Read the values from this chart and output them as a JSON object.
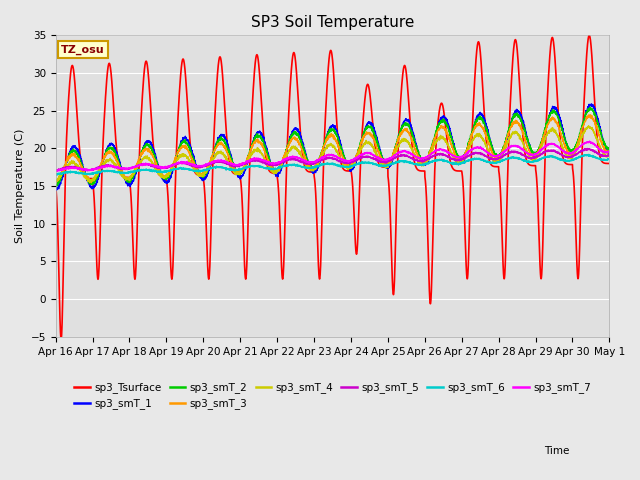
{
  "title": "SP3 Soil Temperature",
  "ylabel": "Soil Temperature (C)",
  "annotation": "TZ_osu",
  "ylim": [
    -5,
    35
  ],
  "fig_facecolor": "#e8e8e8",
  "ax_facecolor": "#e0e0e0",
  "series": [
    {
      "label": "sp3_Tsurface",
      "color": "#ff0000"
    },
    {
      "label": "sp3_smT_1",
      "color": "#0000ff"
    },
    {
      "label": "sp3_smT_2",
      "color": "#00cc00"
    },
    {
      "label": "sp3_smT_3",
      "color": "#ff9900"
    },
    {
      "label": "sp3_smT_4",
      "color": "#cccc00"
    },
    {
      "label": "sp3_smT_5",
      "color": "#cc00cc"
    },
    {
      "label": "sp3_smT_6",
      "color": "#00cccc"
    },
    {
      "label": "sp3_smT_7",
      "color": "#ff00ff"
    }
  ],
  "xtick_labels": [
    "Apr 16",
    "Apr 17",
    "Apr 18",
    "Apr 19",
    "Apr 20",
    "Apr 21",
    "Apr 22",
    "Apr 23",
    "Apr 24",
    "Apr 25",
    "Apr 26",
    "Apr 27",
    "Apr 28",
    "Apr 29",
    "Apr 30",
    "May 1"
  ],
  "ytick_vals": [
    -5,
    0,
    5,
    10,
    15,
    20,
    25,
    30,
    35
  ],
  "num_days": 15,
  "spd": 240
}
